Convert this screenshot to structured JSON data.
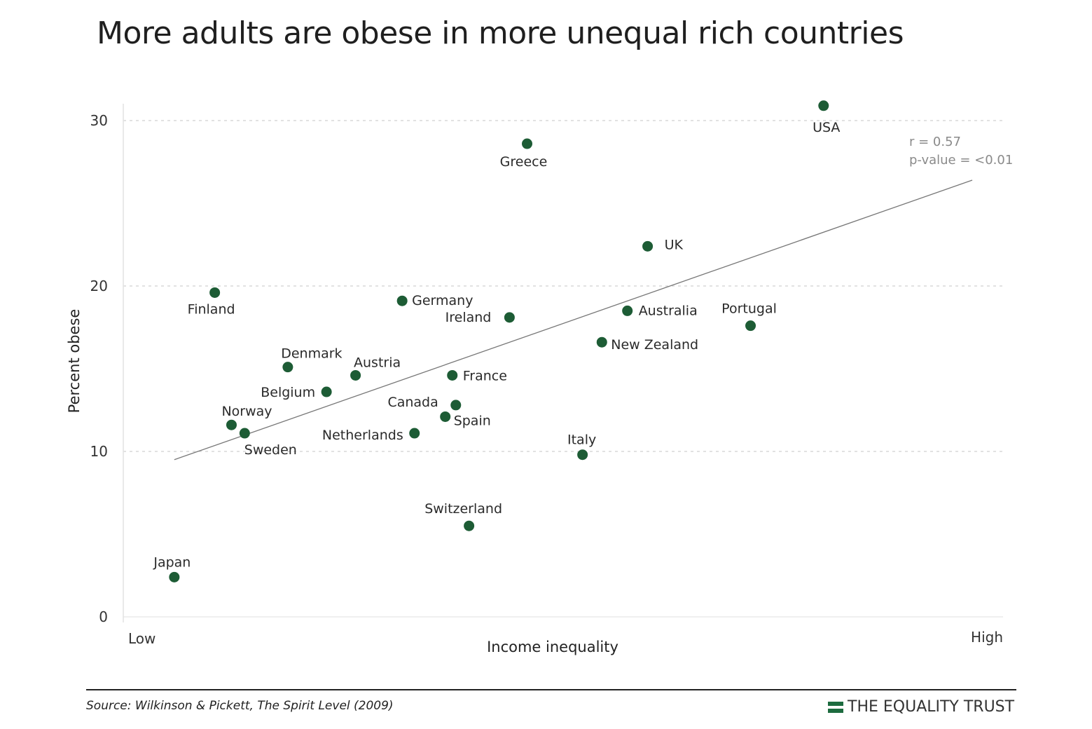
{
  "title": "More adults are obese in more unequal rich countries",
  "source": "Source: Wilkinson & Pickett, The Spirit Level (2009)",
  "brand": "THE EQUALITY TRUST",
  "colors": {
    "point": "#1d5c35",
    "trend": "#777777",
    "grid": "#d0d0d0",
    "brand": "#1d6b3f"
  },
  "chart_data": {
    "type": "scatter",
    "title": "More adults are obese in more unequal rich countries",
    "xlabel": "Income inequality",
    "ylabel": "Percent obese",
    "x_tick_labels": [
      "Low",
      "High"
    ],
    "xlim": [
      0,
      100
    ],
    "ylim": [
      0,
      31
    ],
    "yticks": [
      0,
      10,
      20,
      30
    ],
    "grid": "horizontal dashed",
    "annotations": [
      "r = 0.57",
      "p-value = <0.01"
    ],
    "trendline": {
      "x": [
        5.8,
        96.5
      ],
      "y": [
        9.5,
        26.4
      ]
    },
    "points": [
      {
        "label": "Japan",
        "x": 5.8,
        "y": 2.4
      },
      {
        "label": "Finland",
        "x": 10.4,
        "y": 19.6
      },
      {
        "label": "Norway",
        "x": 12.3,
        "y": 11.6
      },
      {
        "label": "Sweden",
        "x": 13.8,
        "y": 11.1
      },
      {
        "label": "Denmark",
        "x": 18.7,
        "y": 15.1
      },
      {
        "label": "Belgium",
        "x": 23.1,
        "y": 13.6
      },
      {
        "label": "Austria",
        "x": 26.4,
        "y": 14.6
      },
      {
        "label": "Germany",
        "x": 31.7,
        "y": 19.1
      },
      {
        "label": "Netherlands",
        "x": 33.1,
        "y": 11.1
      },
      {
        "label": "Spain",
        "x": 36.6,
        "y": 12.1
      },
      {
        "label": "France",
        "x": 37.4,
        "y": 14.6
      },
      {
        "label": "Canada",
        "x": 37.8,
        "y": 12.8
      },
      {
        "label": "Switzerland",
        "x": 39.3,
        "y": 5.5
      },
      {
        "label": "Ireland",
        "x": 43.9,
        "y": 18.1
      },
      {
        "label": "Greece",
        "x": 45.9,
        "y": 28.6
      },
      {
        "label": "Italy",
        "x": 52.2,
        "y": 9.8
      },
      {
        "label": "New Zealand",
        "x": 54.4,
        "y": 16.6
      },
      {
        "label": "Australia",
        "x": 57.3,
        "y": 18.5
      },
      {
        "label": "UK",
        "x": 59.6,
        "y": 22.4
      },
      {
        "label": "Portugal",
        "x": 71.3,
        "y": 17.6
      },
      {
        "label": "USA",
        "x": 79.6,
        "y": 30.9
      }
    ]
  }
}
